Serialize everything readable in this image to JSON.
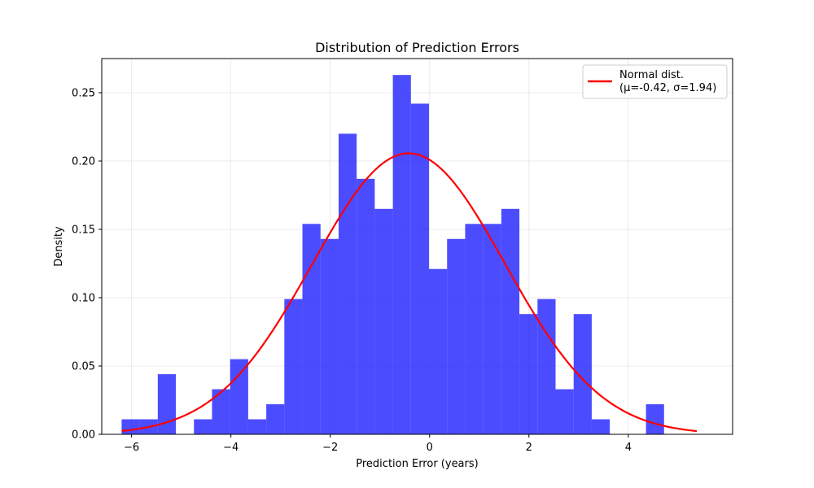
{
  "chart_data": {
    "type": "bar",
    "title": "Distribution of Prediction Errors",
    "xlabel": "Prediction Error (years)",
    "ylabel": "Density",
    "xlim": [
      -6.6,
      6.1
    ],
    "ylim": [
      0,
      0.275
    ],
    "xticks": [
      -6,
      -4,
      -2,
      0,
      2,
      4
    ],
    "xtick_labels": [
      "−6",
      "−4",
      "−2",
      "0",
      "2",
      "4"
    ],
    "yticks": [
      0.0,
      0.05,
      0.1,
      0.15,
      0.2,
      0.25
    ],
    "ytick_labels": [
      "0.00",
      "0.05",
      "0.10",
      "0.15",
      "0.20",
      "0.25"
    ],
    "grid": true,
    "histogram": {
      "bin_start": -6.2,
      "bin_width": 0.364,
      "color": "#0000ff",
      "densities": [
        0.011,
        0.011,
        0.044,
        0,
        0.011,
        0.033,
        0.055,
        0.011,
        0.022,
        0.099,
        0.154,
        0.143,
        0.22,
        0.187,
        0.165,
        0.263,
        0.242,
        0.121,
        0.143,
        0.154,
        0.154,
        0.165,
        0.088,
        0.099,
        0.033,
        0.088,
        0.011,
        0,
        0,
        0.022
      ]
    },
    "series": [
      {
        "name": "Normal dist. (μ=-0.42, σ=1.94)",
        "type": "line",
        "mu": -0.42,
        "sigma": 1.94,
        "x_range": [
          -6.2,
          5.38
        ],
        "color": "#ff0000"
      }
    ],
    "legend": {
      "position": "top-right",
      "line1": "Normal dist.",
      "line2": "(μ=-0.42, σ=1.94)"
    }
  }
}
